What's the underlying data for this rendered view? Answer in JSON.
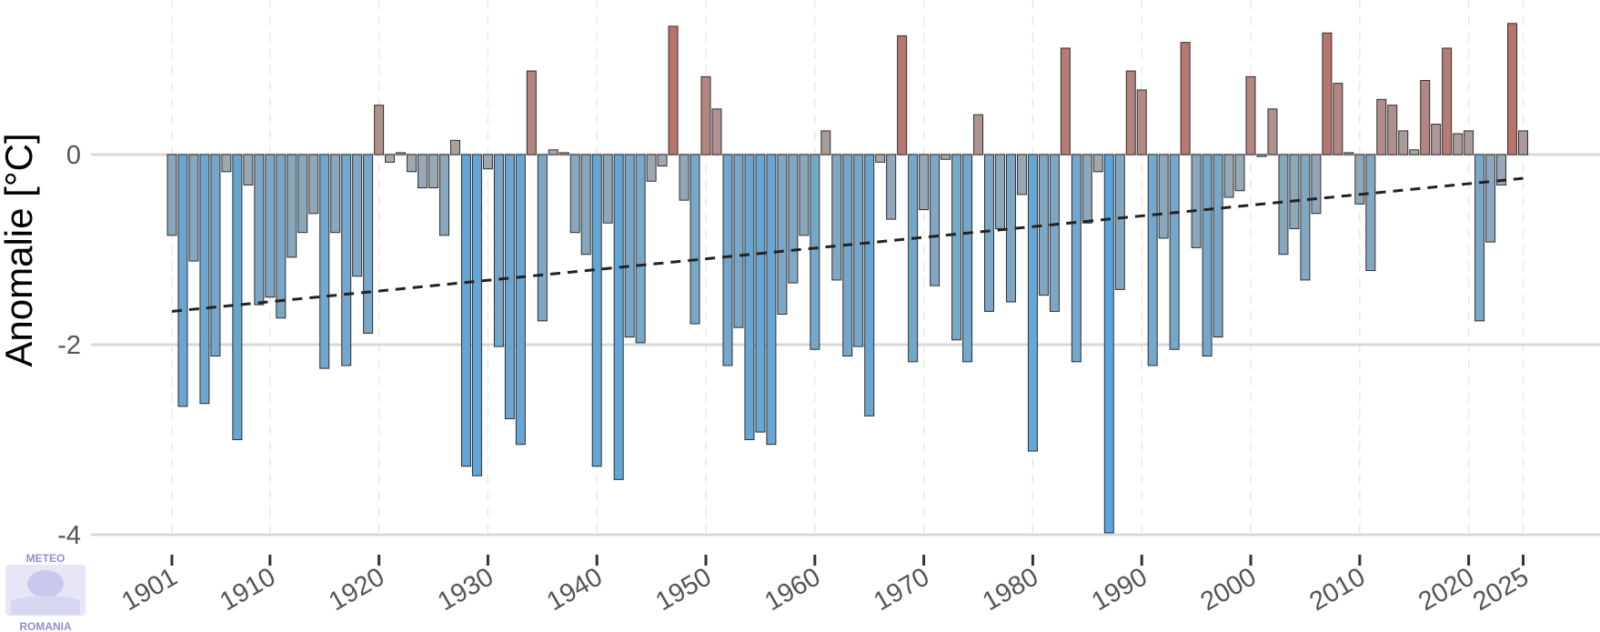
{
  "chart_data": {
    "type": "bar",
    "ylabel": "Anomalie [°C]",
    "ylim": [
      -4,
      1.4
    ],
    "yticks": [
      0,
      -2,
      -4
    ],
    "xticks": [
      1901,
      1910,
      1920,
      1930,
      1940,
      1950,
      1960,
      1970,
      1980,
      1990,
      2000,
      2010,
      2020,
      2025
    ],
    "grid": true,
    "trend": {
      "style": "dashed",
      "x": [
        1901,
        2025
      ],
      "y": [
        -1.65,
        -0.25
      ]
    },
    "x": [
      1901,
      1902,
      1903,
      1904,
      1905,
      1906,
      1907,
      1908,
      1909,
      1910,
      1911,
      1912,
      1913,
      1914,
      1915,
      1916,
      1917,
      1918,
      1919,
      1920,
      1921,
      1922,
      1923,
      1924,
      1925,
      1926,
      1927,
      1928,
      1929,
      1930,
      1931,
      1932,
      1933,
      1934,
      1935,
      1936,
      1937,
      1938,
      1939,
      1940,
      1941,
      1942,
      1943,
      1944,
      1945,
      1946,
      1947,
      1948,
      1949,
      1950,
      1951,
      1952,
      1953,
      1954,
      1955,
      1956,
      1957,
      1958,
      1959,
      1960,
      1961,
      1962,
      1963,
      1964,
      1965,
      1966,
      1967,
      1968,
      1969,
      1970,
      1971,
      1972,
      1973,
      1974,
      1975,
      1976,
      1977,
      1978,
      1979,
      1980,
      1981,
      1982,
      1983,
      1984,
      1985,
      1986,
      1987,
      1988,
      1989,
      1990,
      1991,
      1992,
      1993,
      1994,
      1995,
      1996,
      1997,
      1998,
      1999,
      2000,
      2001,
      2002,
      2003,
      2004,
      2005,
      2006,
      2007,
      2008,
      2009,
      2010,
      2011,
      2012,
      2013,
      2014,
      2015,
      2016,
      2017,
      2018,
      2019,
      2020,
      2021,
      2022,
      2023,
      2024,
      2025
    ],
    "values": [
      -0.85,
      -2.65,
      -1.12,
      -2.62,
      -2.12,
      -0.18,
      -3.0,
      -0.32,
      -1.58,
      -1.5,
      -1.72,
      -1.08,
      -0.82,
      -0.62,
      -2.25,
      -0.82,
      -2.22,
      -1.28,
      -1.88,
      0.52,
      -0.08,
      0.02,
      -0.18,
      -0.35,
      -0.35,
      -0.85,
      0.15,
      -3.28,
      -3.38,
      -0.15,
      -2.02,
      -2.78,
      -3.05,
      0.88,
      -1.75,
      0.05,
      0.02,
      -0.82,
      -1.05,
      -3.28,
      -0.72,
      -3.42,
      -1.92,
      -1.98,
      -0.28,
      -0.12,
      1.35,
      -0.48,
      -1.78,
      0.82,
      0.48,
      -2.22,
      -1.82,
      -3.0,
      -2.92,
      -3.05,
      -1.68,
      -1.35,
      -0.85,
      -2.05,
      0.25,
      -1.32,
      -2.12,
      -2.02,
      -2.75,
      -0.08,
      -0.68,
      1.25,
      -2.18,
      -0.58,
      -1.38,
      -0.05,
      -1.95,
      -2.18,
      0.42,
      -1.65,
      -0.78,
      -1.55,
      -0.42,
      -3.12,
      -1.48,
      -1.65,
      1.12,
      -2.18,
      -0.72,
      -0.18,
      -3.98,
      -1.42,
      0.88,
      0.68,
      -2.22,
      -0.88,
      -2.05,
      1.18,
      -0.98,
      -2.12,
      -1.92,
      -0.45,
      -0.38,
      0.82,
      -0.02,
      0.48,
      -1.05,
      -0.78,
      -1.32,
      -0.62,
      1.28,
      0.75,
      0.02,
      -0.52,
      -1.22,
      0.58,
      0.52,
      0.25,
      0.05,
      0.78,
      0.32,
      1.12,
      0.22,
      0.25,
      -1.75,
      -0.92,
      -0.32,
      1.38,
      0.25
    ]
  },
  "logo": {
    "top_text": "METEO",
    "bottom_text": "ROMANIA"
  },
  "colors": {
    "warm": "#b8726a",
    "neutral": "#a8a8aa",
    "cold": "#4a9fdc",
    "grid": "#d8d8d8",
    "trend": "#222222"
  }
}
